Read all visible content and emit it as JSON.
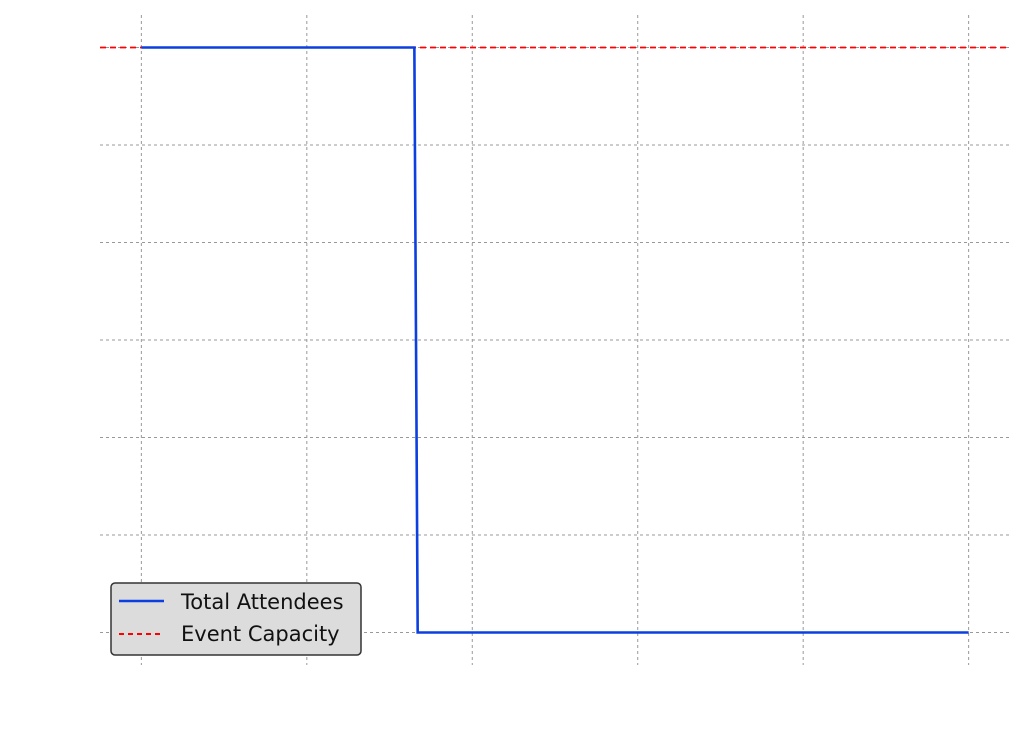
{
  "chart_data": {
    "type": "line",
    "x": [
      0,
      1,
      2,
      3,
      4,
      5
    ],
    "xlim": [
      -0.25,
      5.25
    ],
    "ylim": [
      0.05,
      1.05
    ],
    "grid": true,
    "legend_position": "lower-left",
    "series": [
      {
        "name": "Total Attendees",
        "color": "#0b3fe0",
        "style": "solid",
        "x": [
          0,
          1,
          1.65,
          1.67,
          2,
          3,
          4,
          5
        ],
        "y": [
          1,
          1,
          1,
          0.1,
          0.1,
          0.1,
          0.1,
          0.1
        ]
      },
      {
        "name": "Event Capacity",
        "color": "#ff0000",
        "style": "dashed",
        "y": 1
      }
    ],
    "legend": {
      "items": [
        {
          "label": "Total Attendees",
          "color": "#0b3fe0",
          "style": "solid"
        },
        {
          "label": "Event Capacity",
          "color": "#ff0000",
          "style": "dashed"
        }
      ]
    }
  }
}
